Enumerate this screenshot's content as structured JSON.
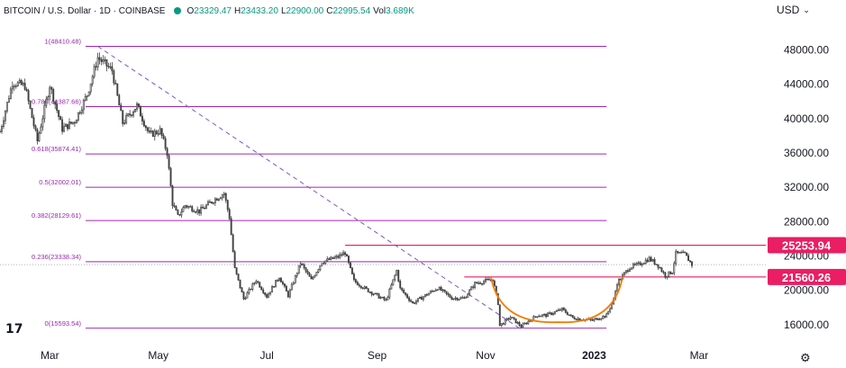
{
  "header": {
    "symbol": "BITCOIN / U.S. Dollar · 1D · COINBASE",
    "open_label": "O",
    "open_value": "23329.47",
    "high_label": "H",
    "high_value": "23433.20",
    "low_label": "L",
    "low_value": "22900.00",
    "close_label": "C",
    "close_value": "22995.54",
    "vol_label": "Vol",
    "vol_value": "3.689K",
    "status_color": "#089981"
  },
  "currency_label": "USD",
  "currency_chevron": "⌄",
  "logo_text": "17",
  "settings_icon": "gear-icon",
  "settings_glyph": "⚙",
  "colors": {
    "up": "#089981",
    "down": "#f23645",
    "candle": "#404040",
    "fib_line": "#9c27b0",
    "hline": "#e91e63",
    "hline_label_bg": "#e91e63",
    "trendline": "#7e57c2",
    "cup_curve": "#f57c00",
    "axis_text": "#131722"
  },
  "chart_data": {
    "type": "candlestick",
    "title": "BITCOIN / U.S. Dollar · 1D · COINBASE",
    "y_axis": {
      "ticks": [
        16000,
        20000,
        24000,
        28000,
        32000,
        36000,
        40000,
        44000,
        48000
      ],
      "tick_labels": [
        "16000.00",
        "20000.00",
        "24000.00",
        "28000.00",
        "32000.00",
        "36000.00",
        "40000.00",
        "44000.00",
        "48000.00"
      ],
      "range": [
        14000,
        51500
      ],
      "position": "right"
    },
    "x_axis": {
      "tick_labels": [
        "Mar",
        "May",
        "Jul",
        "Sep",
        "Nov",
        "2023",
        "Mar"
      ],
      "tick_dates": [
        "2022-03-01",
        "2022-05-01",
        "2022-07-01",
        "2022-09-01",
        "2022-11-01",
        "2023-01-01",
        "2023-03-01"
      ],
      "range": [
        "2022-02-01",
        "2023-04-05"
      ]
    },
    "fibonacci": {
      "start_date": "2022-03-28",
      "end_date": "2022-11-21",
      "right_date": "2023-01-08",
      "levels": [
        {
          "label": "1(48410.48)",
          "value": 48410.48
        },
        {
          "label": "0.786(41387.66)",
          "value": 41387.66
        },
        {
          "label": "0.618(35874.41)",
          "value": 35874.41
        },
        {
          "label": "0.5(32002.01)",
          "value": 32002.01
        },
        {
          "label": "0.382(28129.61)",
          "value": 28129.61
        },
        {
          "label": "0.236(23338.34)",
          "value": 23338.34
        },
        {
          "label": "0(15593.54)",
          "value": 15593.54
        }
      ]
    },
    "horizontal_lines": [
      {
        "value": 25253.94,
        "label": "25253.94",
        "start_date": "2022-08-14"
      },
      {
        "value": 21560.26,
        "label": "21560.26",
        "start_date": "2022-10-20"
      }
    ],
    "trendline": {
      "from": [
        "2022-03-28",
        48410.48
      ],
      "to": [
        "2022-11-20",
        15593.54
      ],
      "style": "dashed"
    },
    "cup_curve": {
      "from": [
        "2022-11-04",
        21560.26
      ],
      "bottom": [
        "2022-12-12",
        16300
      ],
      "to": [
        "2023-01-17",
        21560.26
      ]
    },
    "last_price": 22995.54,
    "price_path": [
      [
        "2022-02-01",
        38500
      ],
      [
        "2022-02-08",
        44200
      ],
      [
        "2022-02-15",
        43800
      ],
      [
        "2022-02-22",
        37400
      ],
      [
        "2022-03-01",
        43900
      ],
      [
        "2022-03-08",
        38800
      ],
      [
        "2022-03-15",
        39700
      ],
      [
        "2022-03-22",
        42800
      ],
      [
        "2022-03-28",
        47100
      ],
      [
        "2022-04-05",
        45600
      ],
      [
        "2022-04-11",
        39500
      ],
      [
        "2022-04-19",
        41500
      ],
      [
        "2022-04-26",
        38100
      ],
      [
        "2022-05-02",
        38600
      ],
      [
        "2022-05-06",
        36000
      ],
      [
        "2022-05-09",
        30100
      ],
      [
        "2022-05-12",
        28600
      ],
      [
        "2022-05-16",
        29900
      ],
      [
        "2022-05-24",
        29200
      ],
      [
        "2022-06-01",
        30500
      ],
      [
        "2022-06-07",
        31300
      ],
      [
        "2022-06-10",
        28500
      ],
      [
        "2022-06-13",
        22500
      ],
      [
        "2022-06-18",
        19000
      ],
      [
        "2022-06-25",
        21200
      ],
      [
        "2022-07-01",
        19300
      ],
      [
        "2022-07-08",
        21600
      ],
      [
        "2022-07-13",
        19400
      ],
      [
        "2022-07-20",
        23200
      ],
      [
        "2022-07-26",
        21200
      ],
      [
        "2022-08-01",
        23300
      ],
      [
        "2022-08-10",
        23900
      ],
      [
        "2022-08-14",
        24400
      ],
      [
        "2022-08-19",
        21100
      ],
      [
        "2022-08-26",
        20100
      ],
      [
        "2022-09-06",
        18800
      ],
      [
        "2022-09-12",
        22300
      ],
      [
        "2022-09-14",
        20200
      ],
      [
        "2022-09-21",
        18500
      ],
      [
        "2022-09-28",
        19400
      ],
      [
        "2022-10-05",
        20300
      ],
      [
        "2022-10-13",
        19100
      ],
      [
        "2022-10-20",
        19100
      ],
      [
        "2022-10-26",
        20800
      ],
      [
        "2022-11-05",
        21300
      ],
      [
        "2022-11-08",
        18500
      ],
      [
        "2022-11-09",
        15900
      ],
      [
        "2022-11-15",
        16900
      ],
      [
        "2022-11-21",
        15800
      ],
      [
        "2022-11-30",
        17100
      ],
      [
        "2022-12-05",
        17100
      ],
      [
        "2022-12-14",
        17800
      ],
      [
        "2022-12-20",
        16800
      ],
      [
        "2022-12-31",
        16500
      ],
      [
        "2023-01-08",
        17100
      ],
      [
        "2023-01-12",
        18900
      ],
      [
        "2023-01-14",
        20900
      ],
      [
        "2023-01-21",
        22700
      ],
      [
        "2023-01-26",
        23000
      ],
      [
        "2023-02-01",
        23700
      ],
      [
        "2023-02-06",
        22900
      ],
      [
        "2023-02-10",
        21700
      ],
      [
        "2023-02-14",
        22200
      ],
      [
        "2023-02-16",
        24300
      ],
      [
        "2023-02-21",
        24200
      ],
      [
        "2023-02-25",
        23000
      ]
    ]
  }
}
